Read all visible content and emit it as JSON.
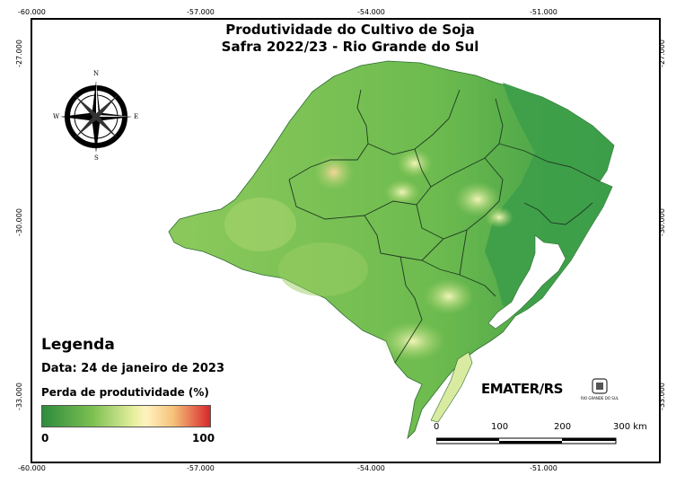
{
  "title_line1": "Produtividade do Cultivo de Soja",
  "title_line2": "Safra 2022/23 - Rio Grande do Sul",
  "lon_ticks": [
    "-60.000",
    "-57.000",
    "-54.000",
    "-51.000"
  ],
  "lat_ticks": [
    "-27.000",
    "-30.000",
    "-33.000"
  ],
  "compass": {
    "n": "N",
    "s": "S",
    "e": "E",
    "w": "W"
  },
  "legend": {
    "title": "Legenda",
    "date": "Data: 24 de janeiro de 2023",
    "variable": "Perda de produtividade (%)",
    "min": "0",
    "max": "100",
    "colors": [
      "#2e8b3d",
      "#7cc051",
      "#e8f0a0",
      "#fff2bf",
      "#f5c27a",
      "#d8272b"
    ]
  },
  "scalebar": {
    "labels": [
      "0",
      "100",
      "200",
      "300 km"
    ]
  },
  "logos": {
    "emater": "EMATER/RS",
    "gov_text": "RIO GRANDE DO SUL"
  }
}
